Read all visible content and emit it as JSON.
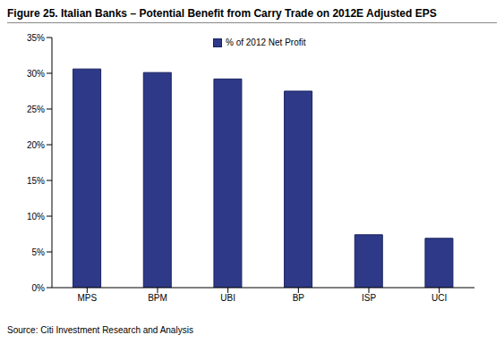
{
  "chart_data": {
    "type": "bar",
    "title": "Figure 25. Italian Banks – Potential Benefit from Carry Trade on 2012E Adjusted EPS",
    "source": "Source: Citi Investment Research and Analysis",
    "categories": [
      "MPS",
      "BPM",
      "UBI",
      "BP",
      "ISP",
      "UCI"
    ],
    "series": [
      {
        "name": "% of 2012 Net Profit",
        "color": "#2E3A87",
        "values": [
          30.6,
          30.1,
          29.2,
          27.5,
          7.4,
          6.9
        ]
      }
    ],
    "ylim": [
      0,
      35
    ],
    "yticks": [
      {
        "value": 0,
        "label": "0%"
      },
      {
        "value": 5,
        "label": "5%"
      },
      {
        "value": 10,
        "label": "10%"
      },
      {
        "value": 15,
        "label": "15%"
      },
      {
        "value": 20,
        "label": "20%"
      },
      {
        "value": 25,
        "label": "25%"
      },
      {
        "value": 30,
        "label": "30%"
      },
      {
        "value": 35,
        "label": "35%"
      }
    ],
    "grid": false,
    "legend": "top"
  }
}
